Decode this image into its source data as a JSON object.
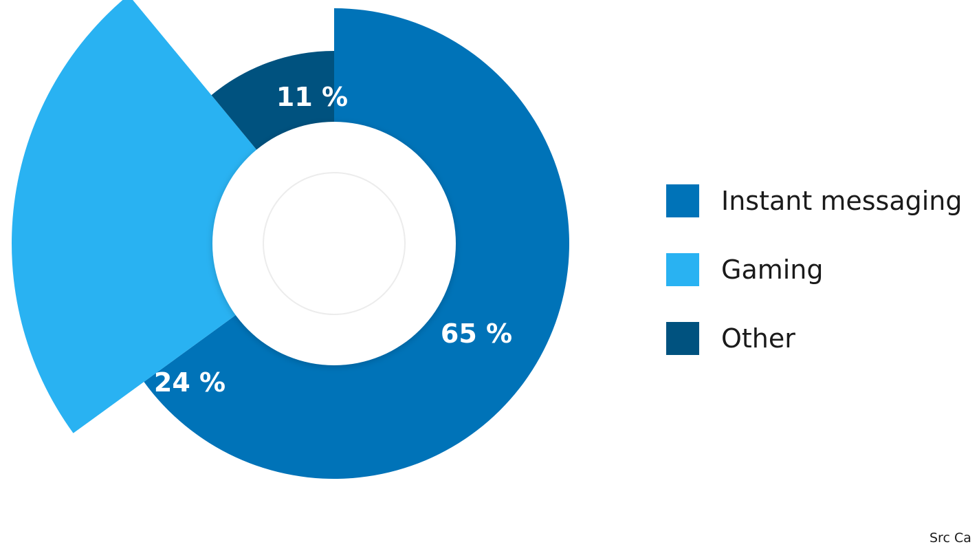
{
  "chart_data": {
    "type": "pie",
    "categories": [
      "Instant messaging",
      "Gaming",
      "Other"
    ],
    "values": [
      65,
      24,
      11
    ],
    "labels": [
      "65 %",
      "24 %",
      "11 %"
    ],
    "colors": [
      "#0073b8",
      "#29b2f2",
      "#00527f"
    ]
  },
  "legend": {
    "items": [
      {
        "label": "Instant messaging",
        "color": "#0073b8"
      },
      {
        "label": "Gaming",
        "color": "#29b2f2"
      },
      {
        "label": "Other",
        "color": "#00527f"
      }
    ]
  },
  "source_note": "Src Ca"
}
